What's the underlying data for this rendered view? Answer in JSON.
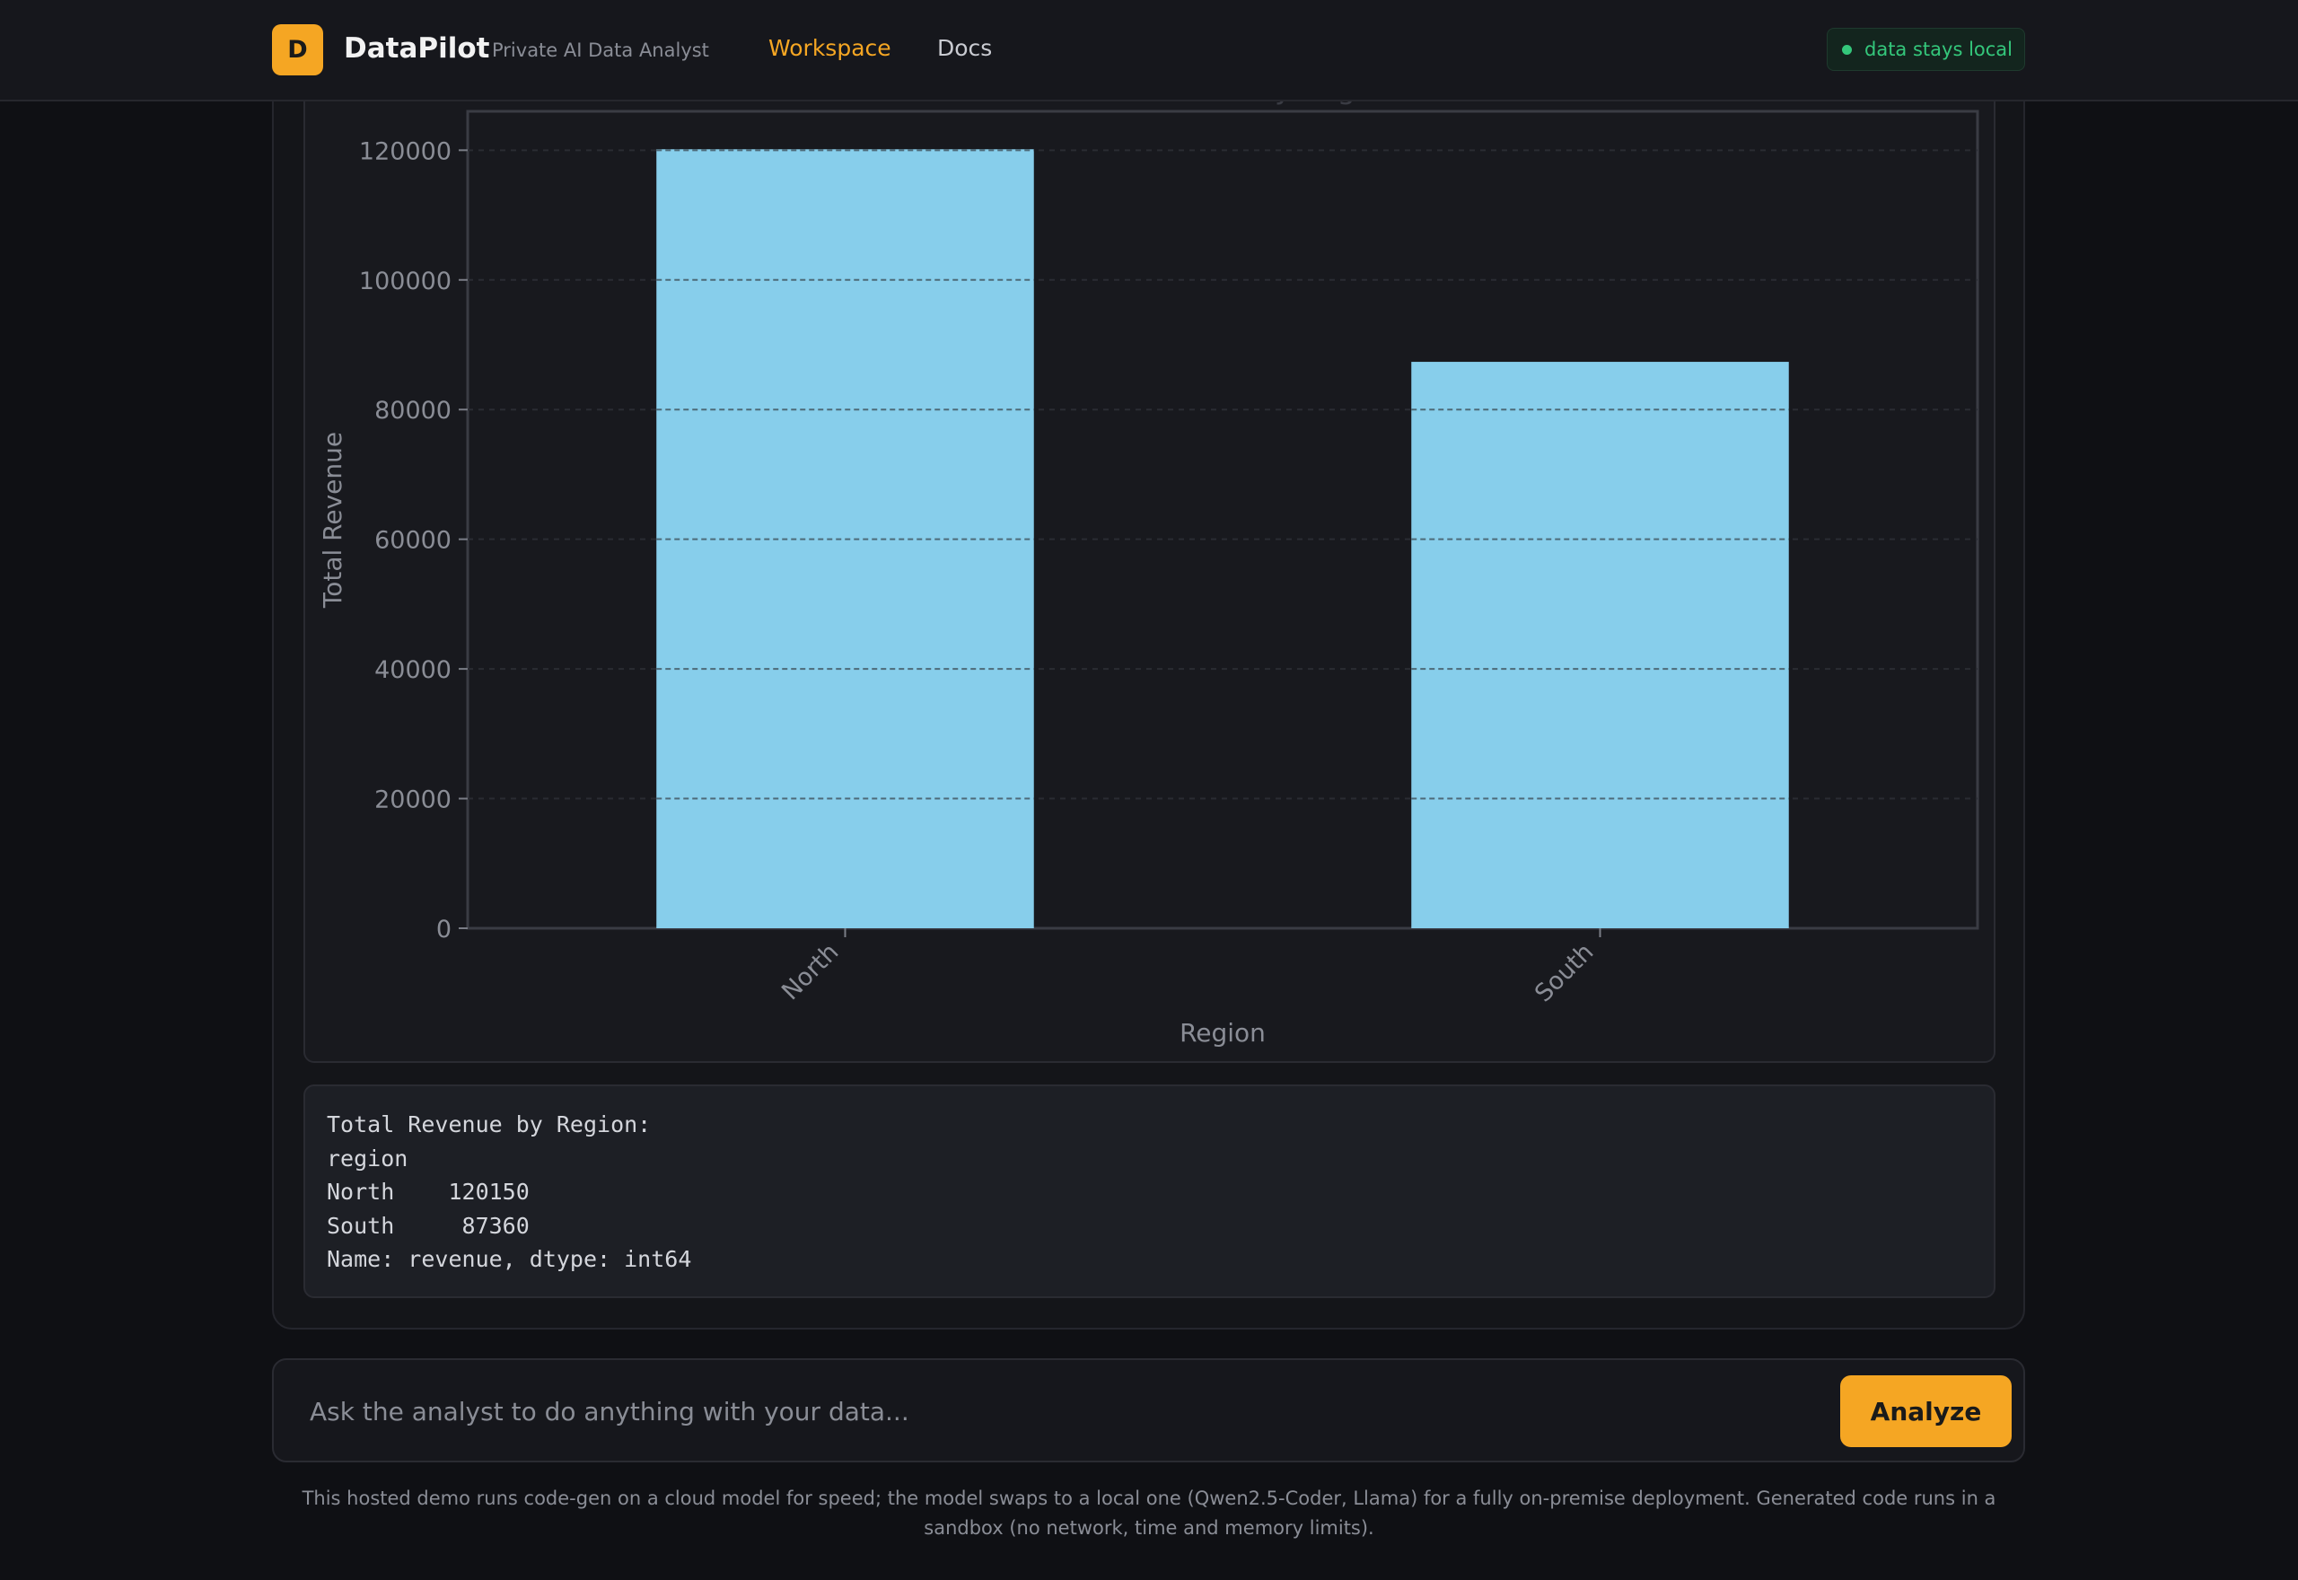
{
  "header": {
    "logo_letter": "D",
    "brand_name": "DataPilot",
    "tagline": "Private AI Data Analyst",
    "nav": [
      {
        "label": "Workspace",
        "active": true
      },
      {
        "label": "Docs",
        "active": false
      }
    ],
    "badge": "data stays local"
  },
  "chart_data": {
    "type": "bar",
    "title": "Total Revenue by Region",
    "xlabel": "Region",
    "ylabel": "Total Revenue",
    "categories": [
      "North",
      "South"
    ],
    "values": [
      120150,
      87360
    ],
    "ylim": [
      0,
      126000
    ],
    "yticks": [
      0,
      20000,
      40000,
      60000,
      80000,
      100000,
      120000
    ],
    "grid": true,
    "bar_color": "#87ceeb"
  },
  "output": {
    "lines": [
      "Total Revenue by Region:",
      "region",
      "North    120150",
      "South     87360",
      "Name: revenue, dtype: int64"
    ]
  },
  "prompt": {
    "placeholder": "Ask the analyst to do anything with your data...",
    "value": "",
    "button_label": "Analyze"
  },
  "footnote": "This hosted demo runs code-gen on a cloud model for speed; the model swaps to a local one (Qwen2.5-Coder, Llama) for a fully on-premise deployment. Generated code runs in a sandbox (no network, time and memory limits).",
  "colors": {
    "accent": "#f5a623",
    "local_badge": "#34c77b",
    "bar": "#87ceeb"
  }
}
